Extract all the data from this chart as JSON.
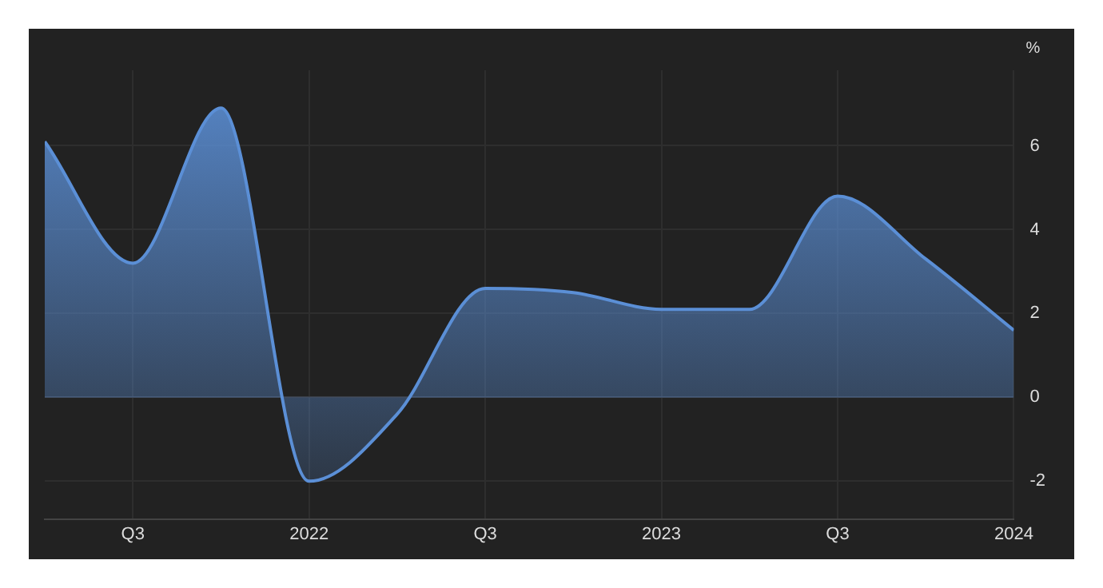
{
  "chart_data": {
    "type": "area",
    "ylabel": "%",
    "x": [
      "2021-04",
      "2021-07",
      "2021-10",
      "2022-01",
      "2022-04",
      "2022-07",
      "2022-10",
      "2023-01",
      "2023-04",
      "2023-07",
      "2023-10",
      "2024-01"
    ],
    "series": [
      {
        "color": "#5b8fd6",
        "values": [
          6.1,
          3.2,
          6.9,
          -2.0,
          -0.4,
          2.6,
          2.5,
          2.1,
          2.1,
          4.8,
          3.3,
          1.6
        ]
      }
    ],
    "xlim": [
      "2021-04",
      "2024-01"
    ],
    "xticks": [
      {
        "value": "2021-07",
        "label": "Q3"
      },
      {
        "value": "2022-01",
        "label": "2022"
      },
      {
        "value": "2022-07",
        "label": "Q3"
      },
      {
        "value": "2023-01",
        "label": "2023"
      },
      {
        "value": "2023-07",
        "label": "Q3"
      },
      {
        "value": "2024-01",
        "label": "2024"
      }
    ],
    "ylim": [
      -2.9,
      7.8
    ],
    "yticks": [
      -2,
      0,
      2,
      4,
      6
    ],
    "grid": true,
    "legend": false
  }
}
